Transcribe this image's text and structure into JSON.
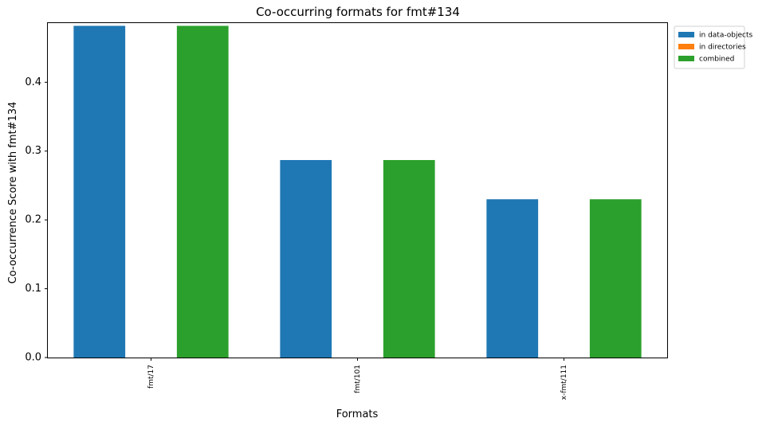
{
  "chart_data": {
    "type": "bar",
    "title": "Co-occurring formats for fmt#134",
    "xlabel": "Formats",
    "ylabel": "Co-occurrence Score with fmt#134",
    "categories": [
      "fmt/17",
      "fmt/101",
      "x-fmt/111"
    ],
    "series": [
      {
        "name": "in data-objects",
        "color": "#1f77b4",
        "values": [
          0.482,
          0.287,
          0.23
        ]
      },
      {
        "name": "in directories",
        "color": "#ff7f0e",
        "values": [
          0.0,
          0.0,
          0.0
        ]
      },
      {
        "name": "combined",
        "color": "#2ca02c",
        "values": [
          0.482,
          0.287,
          0.23
        ]
      }
    ],
    "ylim": [
      0,
      0.486
    ],
    "yticks": [
      0.0,
      0.1,
      0.2,
      0.3,
      0.4
    ],
    "ytick_labels": [
      "0.0",
      "0.1",
      "0.2",
      "0.3",
      "0.4"
    ],
    "legend_position": "outside-top-right",
    "grid": false
  }
}
